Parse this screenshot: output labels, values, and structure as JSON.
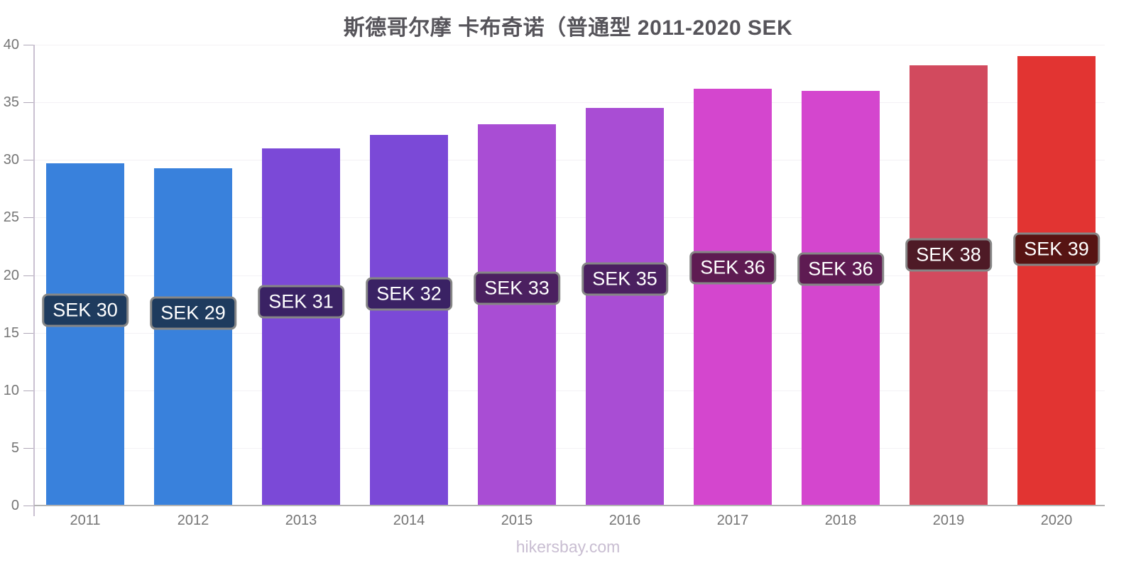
{
  "title": "斯德哥尔摩 卡布奇诺（普通型 2011-2020 SEK",
  "footer": "hikersbay.com",
  "colors": {
    "title_text": "#56545a",
    "axis_label": "#757575",
    "grid": "#f3f1f5",
    "baseline": "#b3b3b3",
    "y_axis_line": "#c9c0d1",
    "tick_mark": "#b0a8b8",
    "bar_label_text": "#ffffff",
    "bar_label_border": "#868686",
    "footer_text": "#c9bed2"
  },
  "chart_data": {
    "type": "bar",
    "title": "斯德哥尔摩 卡布奇诺（普通型 2011-2020 SEK",
    "xlabel": "",
    "ylabel": "",
    "ylim": [
      0,
      40
    ],
    "yticks": [
      0,
      5,
      10,
      15,
      20,
      25,
      30,
      35,
      40
    ],
    "grid": "horizontal-faint",
    "legend": "none",
    "categories": [
      "2011",
      "2012",
      "2013",
      "2014",
      "2015",
      "2016",
      "2017",
      "2018",
      "2019",
      "2020"
    ],
    "values": [
      29.7,
      29.3,
      31.0,
      32.2,
      33.1,
      34.5,
      36.2,
      36.0,
      38.2,
      39.0
    ],
    "bar_labels": [
      "SEK 30",
      "SEK 29",
      "SEK 31",
      "SEK 32",
      "SEK 33",
      "SEK 35",
      "SEK 36",
      "SEK 36",
      "SEK 38",
      "SEK 39"
    ],
    "bar_colors": [
      "#3981dc",
      "#3981dc",
      "#7b49d7",
      "#7b49d7",
      "#a94dd4",
      "#a94dd4",
      "#d446ce",
      "#d446ce",
      "#d24a5e",
      "#e23432"
    ],
    "label_bg_colors": [
      "#1e3b5e",
      "#1e3b5e",
      "#3a2264",
      "#3a2264",
      "#4b2060",
      "#4b2060",
      "#5e1b52",
      "#5e1b52",
      "#4e1a26",
      "#571413"
    ]
  }
}
